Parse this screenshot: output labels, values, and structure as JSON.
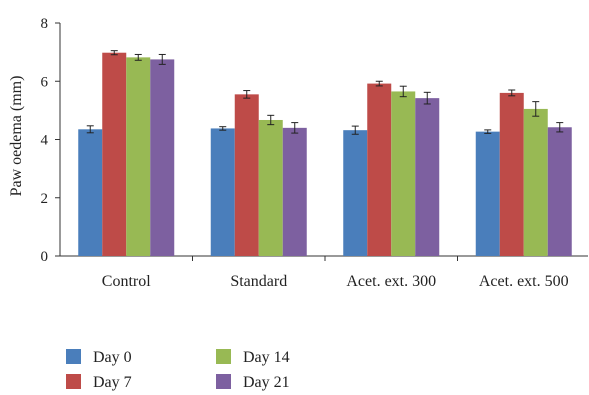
{
  "chart_data": {
    "type": "bar",
    "ylabel": "Paw oedema (mm)",
    "xlabel": "",
    "ylim": [
      0,
      8
    ],
    "yticks": [
      0,
      2,
      4,
      6,
      8
    ],
    "grid": false,
    "legend_position": "bottom-left",
    "categories": [
      "Control",
      "Standard",
      "Acet. ext. 300",
      "Acet. ext. 500"
    ],
    "series": [
      {
        "name": "Day 0",
        "color": "#4a7ebb",
        "values": [
          4.35,
          4.38,
          4.32,
          4.27
        ],
        "errors": [
          0.12,
          0.06,
          0.14,
          0.06
        ]
      },
      {
        "name": "Day 7",
        "color": "#be4b48",
        "values": [
          6.98,
          5.55,
          5.92,
          5.6
        ],
        "errors": [
          0.07,
          0.13,
          0.08,
          0.1
        ]
      },
      {
        "name": "Day 14",
        "color": "#98b954",
        "values": [
          6.82,
          4.67,
          5.65,
          5.05
        ],
        "errors": [
          0.1,
          0.16,
          0.18,
          0.25
        ]
      },
      {
        "name": "Day 21",
        "color": "#7d60a0",
        "values": [
          6.75,
          4.4,
          5.42,
          4.42
        ],
        "errors": [
          0.17,
          0.18,
          0.2,
          0.16
        ]
      }
    ]
  }
}
